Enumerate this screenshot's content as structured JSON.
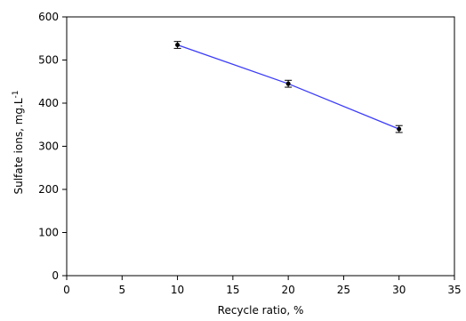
{
  "chart_data": {
    "type": "scatter",
    "xlabel": "Recycle ratio, %",
    "ylabel": "Sulfate ions, mg.L",
    "ylabel_superscript": "-1",
    "xlim": [
      0,
      35
    ],
    "ylim": [
      0,
      600
    ],
    "x_ticks": [
      "0",
      "5",
      "10",
      "15",
      "20",
      "25",
      "30",
      "35"
    ],
    "y_ticks": [
      "0",
      "100",
      "200",
      "300",
      "400",
      "500",
      "600"
    ],
    "grid": false,
    "legend": "none",
    "series": [
      {
        "x": [
          10,
          20,
          30
        ],
        "y": [
          535,
          445,
          340
        ],
        "error": [
          8,
          8,
          8
        ],
        "marker": "dot",
        "line_color": "#3a3aff"
      }
    ]
  }
}
